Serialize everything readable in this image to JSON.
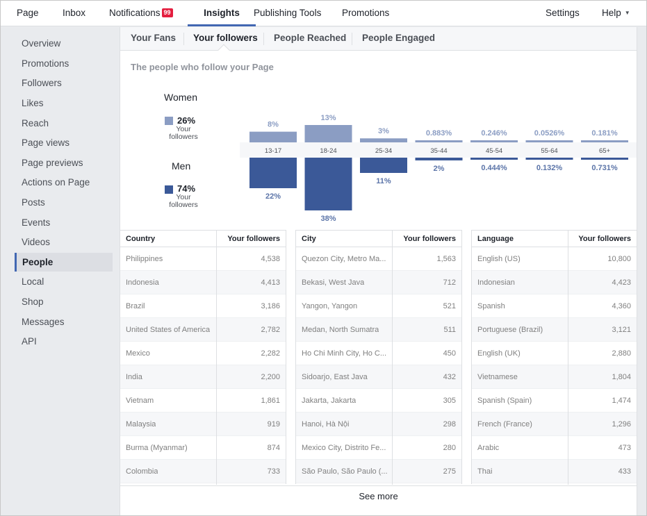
{
  "topnav": {
    "items": [
      {
        "label": "Page"
      },
      {
        "label": "Inbox"
      },
      {
        "label": "Notifications",
        "badge": "99"
      },
      {
        "label": "Insights",
        "active": true
      },
      {
        "label": "Publishing Tools"
      },
      {
        "label": "Promotions"
      }
    ],
    "settings": "Settings",
    "help": "Help"
  },
  "sidebar": {
    "items": [
      {
        "label": "Overview"
      },
      {
        "label": "Promotions"
      },
      {
        "label": "Followers"
      },
      {
        "label": "Likes"
      },
      {
        "label": "Reach"
      },
      {
        "label": "Page views"
      },
      {
        "label": "Page previews"
      },
      {
        "label": "Actions on Page"
      },
      {
        "label": "Posts"
      },
      {
        "label": "Events"
      },
      {
        "label": "Videos"
      },
      {
        "label": "People",
        "active": true
      },
      {
        "label": "Local"
      },
      {
        "label": "Shop"
      },
      {
        "label": "Messages"
      },
      {
        "label": "API"
      }
    ]
  },
  "tabs": [
    {
      "label": "Your Fans"
    },
    {
      "label": "Your followers",
      "active": true
    },
    {
      "label": "People Reached"
    },
    {
      "label": "People Engaged"
    }
  ],
  "subtitle": "The people who follow your Page",
  "legend": {
    "women": {
      "title": "Women",
      "pct": "26%",
      "sub": "Your followers",
      "color": "#8b9dc3"
    },
    "men": {
      "title": "Men",
      "pct": "74%",
      "sub": "Your followers",
      "color": "#3b5998"
    }
  },
  "chart_data": {
    "type": "bar",
    "categories": [
      "13-17",
      "18-24",
      "25-34",
      "35-44",
      "45-54",
      "55-64",
      "65+"
    ],
    "series": [
      {
        "name": "Women",
        "values": [
          8,
          13,
          3,
          0.883,
          0.246,
          0.0526,
          0.181
        ],
        "labels": [
          "8%",
          "13%",
          "3%",
          "0.883%",
          "0.246%",
          "0.0526%",
          "0.181%"
        ],
        "color": "#8b9dc3"
      },
      {
        "name": "Men",
        "values": [
          22,
          38,
          11,
          2,
          0.444,
          0.132,
          0.731
        ],
        "labels": [
          "22%",
          "38%",
          "11%",
          "2%",
          "0.444%",
          "0.132%",
          "0.731%"
        ],
        "color": "#3b5998"
      }
    ]
  },
  "tables": {
    "country": {
      "headers": [
        "Country",
        "Your followers"
      ],
      "rows": [
        [
          "Philippines",
          "4,538"
        ],
        [
          "Indonesia",
          "4,413"
        ],
        [
          "Brazil",
          "3,186"
        ],
        [
          "United States of America",
          "2,782"
        ],
        [
          "Mexico",
          "2,282"
        ],
        [
          "India",
          "2,200"
        ],
        [
          "Vietnam",
          "1,861"
        ],
        [
          "Malaysia",
          "919"
        ],
        [
          "Burma (Myanmar)",
          "874"
        ],
        [
          "Colombia",
          "733"
        ]
      ]
    },
    "city": {
      "headers": [
        "City",
        "Your followers"
      ],
      "rows": [
        [
          "Quezon City, Metro Ma...",
          "1,563"
        ],
        [
          "Bekasi, West Java",
          "712"
        ],
        [
          "Yangon, Yangon",
          "521"
        ],
        [
          "Medan, North Sumatra",
          "511"
        ],
        [
          "Ho Chi Minh City, Ho C...",
          "450"
        ],
        [
          "Sidoarjo, East Java",
          "432"
        ],
        [
          "Jakarta, Jakarta",
          "305"
        ],
        [
          "Hanoi, Hà Nội",
          "298"
        ],
        [
          "Mexico City, Distrito Fe...",
          "280"
        ],
        [
          "São Paulo, São Paulo (...",
          "275"
        ]
      ]
    },
    "language": {
      "headers": [
        "Language",
        "Your followers"
      ],
      "rows": [
        [
          "English (US)",
          "10,800"
        ],
        [
          "Indonesian",
          "4,423"
        ],
        [
          "Spanish",
          "4,360"
        ],
        [
          "Portuguese (Brazil)",
          "3,121"
        ],
        [
          "English (UK)",
          "2,880"
        ],
        [
          "Vietnamese",
          "1,804"
        ],
        [
          "Spanish (Spain)",
          "1,474"
        ],
        [
          "French (France)",
          "1,296"
        ],
        [
          "Arabic",
          "473"
        ],
        [
          "Thai",
          "433"
        ]
      ]
    }
  },
  "see_more": "See more"
}
